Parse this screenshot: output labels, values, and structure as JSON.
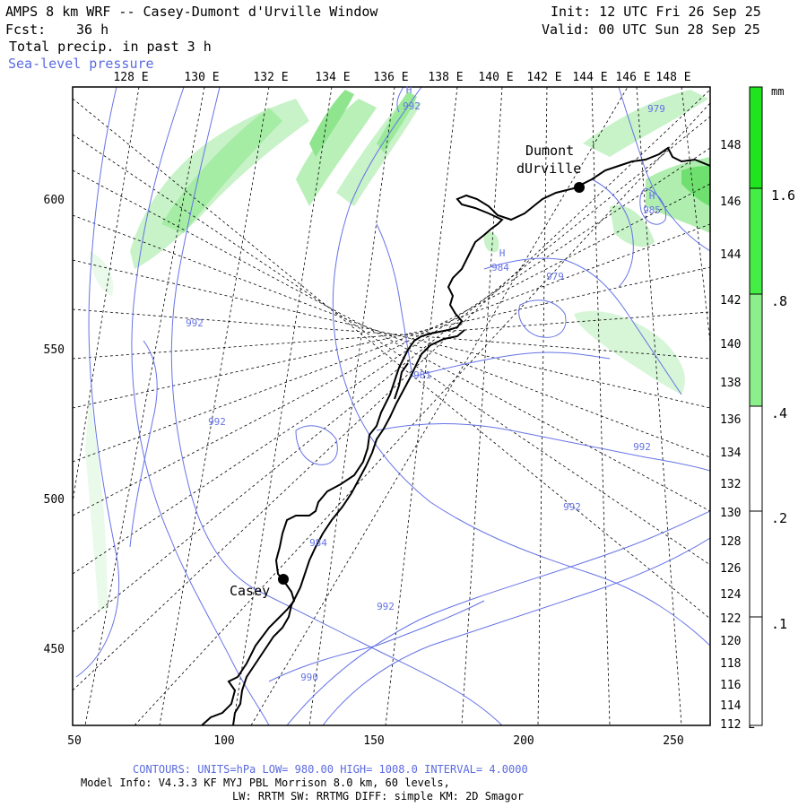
{
  "header": {
    "model": "AMPS 8 km WRF -- Casey-Dumont d'Urville Window",
    "forecast_label": "Fcst:",
    "forecast_hours": "36 h",
    "init": "Init: 12 UTC Fri 26 Sep 25",
    "valid": "Valid: 00 UTC Sun 28 Sep 25",
    "field_primary": "Total precip. in past 3 h",
    "field_secondary": "Sea-level pressure"
  },
  "map": {
    "top_longitudes": [
      "128 E",
      "130 E",
      "132 E",
      "134 E",
      "136 E",
      "138 E",
      "140 E",
      "142 E",
      "144 E",
      "146 E",
      "148 E"
    ],
    "right_longitudes": [
      "148 E",
      "146 E",
      "144 E",
      "142 E",
      "140 E",
      "138 E",
      "136 E",
      "134 E",
      "132 E",
      "130 E",
      "128 E",
      "126 E",
      "124 E",
      "122 E",
      "120 E",
      "118 E",
      "116 E",
      "114 E",
      "112 E"
    ],
    "left_ticks": [
      "600",
      "550",
      "500",
      "450"
    ],
    "bottom_ticks": [
      "50",
      "100",
      "150",
      "200",
      "250"
    ],
    "stations": [
      {
        "name_line1": "Dumont",
        "name_line2": "dUrville"
      },
      {
        "name_line1": "Casey"
      }
    ],
    "pressure_labels": [
      "992",
      "979",
      "985",
      "984",
      "979",
      "992",
      "981",
      "992",
      "992",
      "992",
      "984",
      "992",
      "990"
    ],
    "high_markers": [
      "H",
      "H",
      "H"
    ]
  },
  "colorbar": {
    "units": "mm",
    "ticks": [
      "1.6",
      ".8",
      ".4",
      ".2",
      ".1"
    ],
    "colors": [
      "#1fe41f",
      "#44ee44",
      "#8cef8c",
      "#d2f7d2",
      "#eefcee"
    ]
  },
  "footer": {
    "contours": "CONTOURS: UNITS=hPa LOW= 980.00 HIGH= 1008.0 INTERVAL= 4.0000",
    "model_info": "Model Info: V4.3.3 KF MYJ PBL Morrison 8.0 km, 60 levels,",
    "physics": "LW: RRTM SW: RRTMG DIFF: simple KM: 2D Smagor"
  }
}
